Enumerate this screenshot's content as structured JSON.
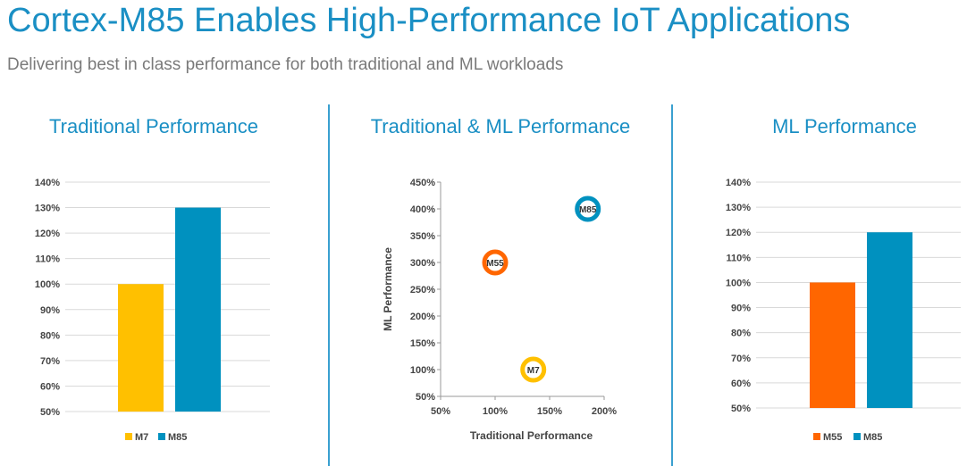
{
  "title": "Cortex-M85 Enables High-Performance IoT Applications",
  "subtitle": "Delivering best in class performance for both traditional and ML workloads",
  "chart_data": [
    {
      "type": "bar",
      "title": "Traditional Performance",
      "categories": [
        "M7",
        "M85"
      ],
      "values": [
        100,
        130
      ],
      "colors": [
        "#ffc000",
        "#0091bf"
      ],
      "ylim": [
        50,
        140
      ],
      "yticks": [
        "50%",
        "60%",
        "70%",
        "80%",
        "90%",
        "100%",
        "110%",
        "120%",
        "130%",
        "140%"
      ],
      "legend": "bottom",
      "grid": true
    },
    {
      "type": "scatter",
      "title": "Traditional & ML Performance",
      "xlabel": "Traditional Performance",
      "ylabel": "ML Performance",
      "xlim": [
        50,
        200
      ],
      "ylim": [
        50,
        450
      ],
      "xticks": [
        "50%",
        "100%",
        "150%",
        "200%"
      ],
      "yticks": [
        "50%",
        "100%",
        "150%",
        "200%",
        "250%",
        "300%",
        "350%",
        "400%",
        "450%"
      ],
      "points": [
        {
          "label": "M55",
          "x": 100,
          "y": 300,
          "color": "#ff6600"
        },
        {
          "label": "M85",
          "x": 185,
          "y": 400,
          "color": "#0091bf"
        },
        {
          "label": "M7",
          "x": 135,
          "y": 100,
          "color": "#ffc000"
        }
      ],
      "grid": false
    },
    {
      "type": "bar",
      "title": "ML Performance",
      "categories": [
        "M55",
        "M85"
      ],
      "values": [
        100,
        120
      ],
      "colors": [
        "#ff6600",
        "#0091bf"
      ],
      "ylim": [
        50,
        140
      ],
      "yticks": [
        "50%",
        "60%",
        "70%",
        "80%",
        "90%",
        "100%",
        "110%",
        "120%",
        "130%",
        "140%"
      ],
      "legend": "bottom",
      "grid": true
    }
  ]
}
